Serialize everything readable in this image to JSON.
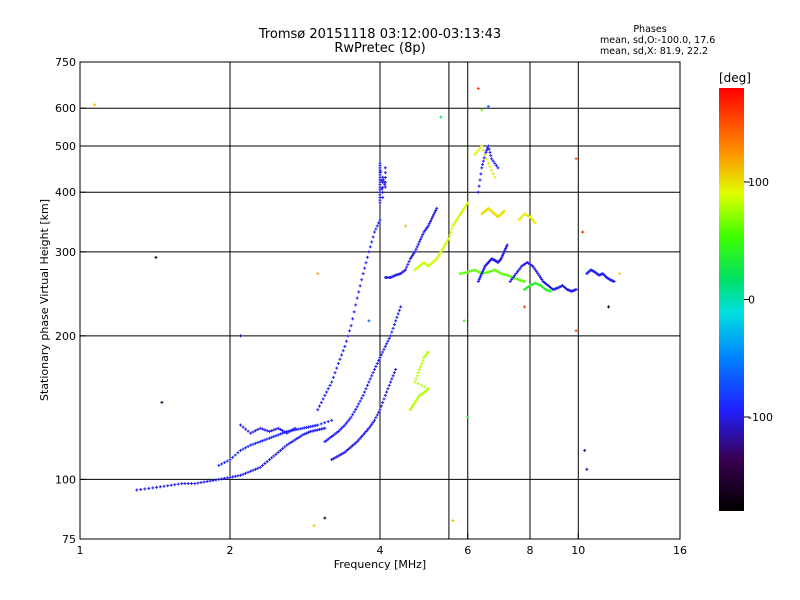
{
  "header": {
    "title": "Tromsø 20151118 03:12:00-03:13:43",
    "subtitle": "RwPretec (8p)"
  },
  "phase_legend": {
    "heading": "Phases",
    "line_o": "mean, sd,O:-100.0, 17.6",
    "line_x": "mean, sd,X: 81.9, 22.2"
  },
  "colorbar": {
    "label": "[deg]",
    "range": [
      -180,
      180
    ],
    "ticks": [
      {
        "value": 100,
        "label": "100"
      },
      {
        "value": 0,
        "label": "0"
      },
      {
        "value": -100,
        "label": "-100"
      }
    ]
  },
  "chart_data": {
    "type": "scatter",
    "title": "Tromsø 20151118 03:12:00-03:13:43",
    "subtitle": "RwPretec (8p)",
    "xlabel": "Frequency [MHz]",
    "ylabel": "Stationary phase Virtual Height [km]",
    "xscale": "log",
    "yscale": "log",
    "xlim": [
      1,
      16
    ],
    "ylim": [
      75,
      750
    ],
    "xticks": [
      {
        "value": 1,
        "label": "1"
      },
      {
        "value": 2,
        "label": "2"
      },
      {
        "value": 4,
        "label": "4"
      },
      {
        "value": 6,
        "label": "6"
      },
      {
        "value": 8,
        "label": "8"
      },
      {
        "value": 10,
        "label": "10"
      },
      {
        "value": 16,
        "label": "16"
      }
    ],
    "xgrid": [
      2,
      4,
      5.5,
      6,
      8,
      10
    ],
    "yticks": [
      {
        "value": 75,
        "label": "75"
      },
      {
        "value": 100,
        "label": "100"
      },
      {
        "value": 200,
        "label": "200"
      },
      {
        "value": 300,
        "label": "300"
      },
      {
        "value": 400,
        "label": "400"
      },
      {
        "value": 500,
        "label": "500"
      },
      {
        "value": 600,
        "label": "600"
      },
      {
        "value": 750,
        "label": "750"
      }
    ],
    "ygrid": [
      100,
      200,
      300,
      400,
      500,
      600
    ],
    "grid": true,
    "color_by": "phase [deg]",
    "traces": [
      {
        "phase": -100,
        "points": [
          [
            1.3,
            95
          ],
          [
            1.4,
            96
          ],
          [
            1.5,
            97
          ],
          [
            1.6,
            98
          ],
          [
            1.7,
            98
          ],
          [
            1.8,
            99
          ],
          [
            1.9,
            100
          ],
          [
            2.0,
            101
          ],
          [
            2.1,
            102
          ],
          [
            2.2,
            104
          ],
          [
            2.3,
            106
          ],
          [
            2.4,
            110
          ],
          [
            2.5,
            114
          ],
          [
            2.6,
            118
          ],
          [
            2.7,
            121
          ],
          [
            2.8,
            124
          ],
          [
            2.9,
            126
          ],
          [
            3.0,
            127
          ],
          [
            3.1,
            128
          ]
        ]
      },
      {
        "phase": -90,
        "points": [
          [
            1.9,
            107
          ],
          [
            2.0,
            110
          ],
          [
            2.1,
            115
          ],
          [
            2.2,
            118
          ],
          [
            2.3,
            120
          ],
          [
            2.4,
            122
          ],
          [
            2.5,
            124
          ],
          [
            2.6,
            126
          ],
          [
            2.7,
            127
          ],
          [
            2.8,
            128
          ],
          [
            2.9,
            129
          ],
          [
            3.0,
            130
          ],
          [
            3.2,
            133
          ]
        ]
      },
      {
        "phase": -95,
        "points": [
          [
            3.0,
            140
          ],
          [
            3.1,
            150
          ],
          [
            3.2,
            160
          ],
          [
            3.3,
            175
          ],
          [
            3.4,
            190
          ],
          [
            3.5,
            210
          ],
          [
            3.6,
            240
          ],
          [
            3.7,
            270
          ],
          [
            3.8,
            300
          ],
          [
            3.9,
            330
          ],
          [
            4.0,
            350
          ]
        ]
      },
      {
        "phase": -95,
        "points": [
          [
            3.1,
            120
          ],
          [
            3.2,
            123
          ],
          [
            3.3,
            126
          ],
          [
            3.4,
            130
          ],
          [
            3.5,
            135
          ],
          [
            3.6,
            142
          ],
          [
            3.7,
            150
          ],
          [
            3.8,
            160
          ],
          [
            3.9,
            170
          ],
          [
            4.0,
            180
          ],
          [
            4.1,
            190
          ],
          [
            4.2,
            200
          ],
          [
            4.3,
            215
          ],
          [
            4.4,
            230
          ]
        ]
      },
      {
        "phase": -100,
        "points": [
          [
            3.2,
            110
          ],
          [
            3.3,
            112
          ],
          [
            3.4,
            114
          ],
          [
            3.5,
            117
          ],
          [
            3.6,
            120
          ],
          [
            3.7,
            124
          ],
          [
            3.8,
            128
          ],
          [
            3.9,
            133
          ],
          [
            4.0,
            140
          ],
          [
            4.1,
            150
          ],
          [
            4.2,
            160
          ],
          [
            4.3,
            170
          ]
        ]
      },
      {
        "phase": -100,
        "points": [
          [
            4.0,
            380
          ],
          [
            4.0,
            400
          ],
          [
            4.0,
            420
          ],
          [
            4.0,
            440
          ],
          [
            4.0,
            460
          ],
          [
            4.05,
            390
          ],
          [
            4.05,
            430
          ],
          [
            4.1,
            410
          ],
          [
            4.1,
            450
          ]
        ]
      },
      {
        "phase": -100,
        "points": [
          [
            4.1,
            265
          ],
          [
            4.2,
            265
          ],
          [
            4.3,
            268
          ],
          [
            4.4,
            270
          ],
          [
            4.5,
            275
          ],
          [
            4.6,
            290
          ],
          [
            4.7,
            300
          ],
          [
            4.8,
            315
          ],
          [
            4.9,
            330
          ],
          [
            5.0,
            340
          ],
          [
            5.1,
            355
          ],
          [
            5.2,
            370
          ]
        ]
      },
      {
        "phase": 80,
        "points": [
          [
            4.6,
            140
          ],
          [
            4.7,
            145
          ],
          [
            4.8,
            150
          ],
          [
            4.9,
            152
          ],
          [
            5.0,
            155
          ],
          [
            4.7,
            160
          ],
          [
            4.8,
            170
          ],
          [
            4.9,
            180
          ],
          [
            5.0,
            185
          ]
        ]
      },
      {
        "phase": 85,
        "points": [
          [
            4.7,
            275
          ],
          [
            4.8,
            280
          ],
          [
            4.9,
            285
          ],
          [
            5.0,
            280
          ],
          [
            5.1,
            285
          ],
          [
            5.2,
            290
          ],
          [
            5.3,
            300
          ],
          [
            5.4,
            310
          ],
          [
            5.5,
            320
          ],
          [
            5.6,
            340
          ],
          [
            5.7,
            350
          ],
          [
            5.8,
            360
          ],
          [
            5.9,
            370
          ],
          [
            6.0,
            380
          ]
        ]
      },
      {
        "phase": 60,
        "points": [
          [
            5.8,
            270
          ],
          [
            6.0,
            272
          ],
          [
            6.2,
            275
          ],
          [
            6.4,
            270
          ],
          [
            6.6,
            272
          ],
          [
            6.8,
            275
          ],
          [
            7.0,
            270
          ],
          [
            7.2,
            268
          ],
          [
            7.4,
            265
          ],
          [
            7.6,
            262
          ],
          [
            7.8,
            260
          ]
        ]
      },
      {
        "phase": -100,
        "points": [
          [
            6.3,
            260
          ],
          [
            6.4,
            270
          ],
          [
            6.5,
            280
          ],
          [
            6.6,
            285
          ],
          [
            6.7,
            290
          ],
          [
            6.8,
            288
          ],
          [
            6.9,
            285
          ],
          [
            7.0,
            290
          ],
          [
            7.1,
            300
          ],
          [
            7.2,
            310
          ]
        ]
      },
      {
        "phase": 100,
        "points": [
          [
            6.4,
            360
          ],
          [
            6.5,
            365
          ],
          [
            6.6,
            370
          ],
          [
            6.7,
            365
          ],
          [
            6.8,
            360
          ],
          [
            6.9,
            355
          ],
          [
            7.0,
            360
          ],
          [
            7.1,
            365
          ]
        ]
      },
      {
        "phase": -100,
        "points": [
          [
            7.3,
            260
          ],
          [
            7.5,
            270
          ],
          [
            7.7,
            280
          ],
          [
            7.9,
            285
          ],
          [
            8.1,
            280
          ],
          [
            8.3,
            270
          ],
          [
            8.5,
            260
          ],
          [
            8.7,
            255
          ],
          [
            8.9,
            250
          ],
          [
            9.1,
            252
          ],
          [
            9.3,
            255
          ],
          [
            9.5,
            250
          ],
          [
            9.7,
            248
          ],
          [
            9.9,
            250
          ]
        ]
      },
      {
        "phase": 40,
        "points": [
          [
            7.8,
            250
          ],
          [
            8.0,
            255
          ],
          [
            8.2,
            258
          ],
          [
            8.4,
            255
          ],
          [
            8.6,
            250
          ],
          [
            8.8,
            248
          ]
        ]
      },
      {
        "phase": 95,
        "points": [
          [
            7.6,
            350
          ],
          [
            7.8,
            360
          ],
          [
            8.0,
            355
          ],
          [
            8.2,
            345
          ]
        ]
      },
      {
        "phase": -95,
        "points": [
          [
            10.4,
            270
          ],
          [
            10.6,
            275
          ],
          [
            10.8,
            272
          ],
          [
            11.0,
            268
          ],
          [
            11.2,
            270
          ],
          [
            11.4,
            265
          ],
          [
            11.6,
            262
          ],
          [
            11.8,
            260
          ]
        ]
      },
      {
        "phase": -95,
        "points": [
          [
            6.3,
            400
          ],
          [
            6.4,
            450
          ],
          [
            6.5,
            480
          ],
          [
            6.6,
            500
          ],
          [
            6.7,
            470
          ],
          [
            6.9,
            450
          ]
        ]
      },
      {
        "phase": 95,
        "points": [
          [
            6.2,
            480
          ],
          [
            6.4,
            500
          ],
          [
            6.6,
            460
          ],
          [
            6.8,
            430
          ]
        ]
      },
      {
        "phase": -100,
        "points": [
          [
            2.1,
            130
          ],
          [
            2.2,
            125
          ],
          [
            2.3,
            128
          ],
          [
            2.4,
            126
          ],
          [
            2.5,
            128
          ],
          [
            2.6,
            125
          ],
          [
            2.7,
            128
          ]
        ]
      }
    ],
    "outliers": [
      {
        "x": 1.07,
        "y": 610,
        "phase": 110
      },
      {
        "x": 1.42,
        "y": 292,
        "phase": -160
      },
      {
        "x": 1.46,
        "y": 145,
        "phase": -140
      },
      {
        "x": 2.1,
        "y": 200,
        "phase": -120
      },
      {
        "x": 3.8,
        "y": 215,
        "phase": -60
      },
      {
        "x": 4.5,
        "y": 340,
        "phase": 110
      },
      {
        "x": 5.3,
        "y": 575,
        "phase": 20
      },
      {
        "x": 5.6,
        "y": 82,
        "phase": 110
      },
      {
        "x": 5.9,
        "y": 215,
        "phase": 50
      },
      {
        "x": 6.3,
        "y": 660,
        "phase": 160
      },
      {
        "x": 6.4,
        "y": 595,
        "phase": 60
      },
      {
        "x": 6.6,
        "y": 605,
        "phase": -60
      },
      {
        "x": 9.9,
        "y": 470,
        "phase": 150
      },
      {
        "x": 10.2,
        "y": 330,
        "phase": 170
      },
      {
        "x": 10.3,
        "y": 115,
        "phase": -120
      },
      {
        "x": 10.4,
        "y": 105,
        "phase": -120
      },
      {
        "x": 9.9,
        "y": 205,
        "phase": 150
      },
      {
        "x": 11.5,
        "y": 230,
        "phase": -170
      },
      {
        "x": 12.1,
        "y": 270,
        "phase": 100
      },
      {
        "x": 3.1,
        "y": 83,
        "phase": -170
      },
      {
        "x": 2.95,
        "y": 80,
        "phase": 110
      },
      {
        "x": 3.0,
        "y": 270,
        "phase": 120
      },
      {
        "x": 7.8,
        "y": 230,
        "phase": 160
      },
      {
        "x": 6.0,
        "y": 135,
        "phase": 30
      }
    ]
  }
}
